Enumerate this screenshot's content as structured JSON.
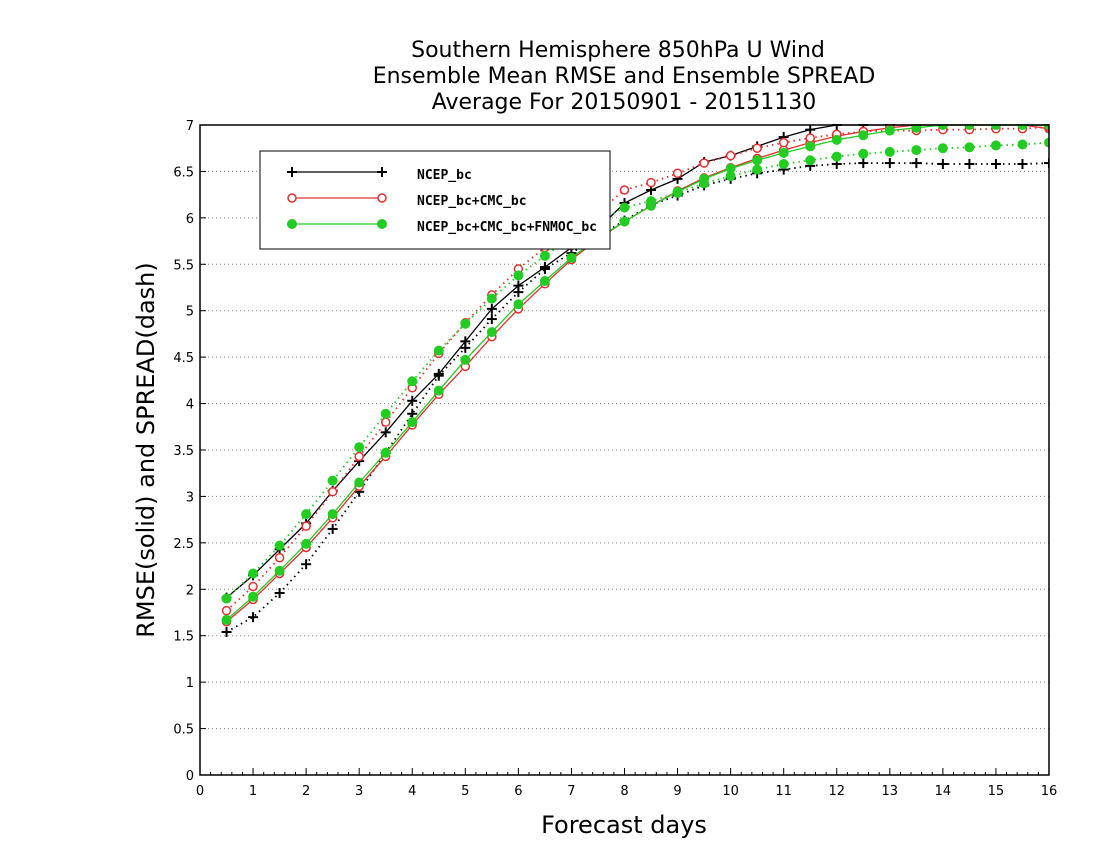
{
  "chart_data": {
    "type": "line",
    "title_lines": [
      "Southern Hemisphere 850hPa U Wind",
      "Ensemble Mean RMSE and Ensemble SPREAD",
      "Average For 20150901 - 20151130"
    ],
    "xlabel": "Forecast days",
    "ylabel": "RMSE(solid) and SPREAD(dash)",
    "xlim": [
      0,
      16
    ],
    "ylim": [
      0,
      7
    ],
    "xticks": [
      "0",
      "1",
      "2",
      "3",
      "4",
      "5",
      "6",
      "7",
      "8",
      "9",
      "10",
      "11",
      "12",
      "13",
      "14",
      "15",
      "16"
    ],
    "yticks": [
      "0",
      "0.5",
      "1",
      "1.5",
      "2",
      "2.5",
      "3",
      "3.5",
      "4",
      "4.5",
      "5",
      "5.5",
      "6",
      "6.5",
      "7"
    ],
    "grid": "horizontal-dotted",
    "legend_placement": "upper-left",
    "x": [
      0.5,
      1,
      1.5,
      2,
      2.5,
      3,
      3.5,
      4,
      4.5,
      5,
      5.5,
      6,
      6.5,
      7,
      7.5,
      8,
      8.5,
      9,
      9.5,
      10,
      10.5,
      11,
      11.5,
      12,
      12.5,
      13,
      13.5,
      14,
      14.5,
      15,
      15.5,
      16
    ],
    "series": [
      {
        "name": "NCEP_bc",
        "color": "#000000",
        "marker": "plus",
        "rmse": [
          1.91,
          2.15,
          2.43,
          2.71,
          3.06,
          3.38,
          3.69,
          4.03,
          4.32,
          4.67,
          5.02,
          5.27,
          5.47,
          5.68,
          5.88,
          6.16,
          6.3,
          6.42,
          6.6,
          6.67,
          6.77,
          6.87,
          6.95,
          7.0,
          7.0,
          7.0,
          7.0,
          7.0,
          7.0,
          7.0,
          7.0,
          7.0
        ],
        "spread": [
          1.54,
          1.7,
          1.96,
          2.27,
          2.65,
          3.05,
          3.47,
          3.89,
          4.3,
          4.6,
          4.91,
          5.2,
          5.45,
          5.62,
          5.8,
          5.97,
          6.14,
          6.24,
          6.35,
          6.42,
          6.48,
          6.52,
          6.56,
          6.58,
          6.59,
          6.59,
          6.59,
          6.58,
          6.58,
          6.58,
          6.58,
          6.59
        ]
      },
      {
        "name": "NCEP_bc+CMC_bc",
        "color": "#e03030",
        "marker": "open-circle",
        "rmse": [
          1.65,
          1.89,
          2.17,
          2.45,
          2.77,
          3.11,
          3.43,
          3.77,
          4.1,
          4.4,
          4.72,
          5.02,
          5.29,
          5.55,
          5.77,
          5.96,
          6.13,
          6.29,
          6.43,
          6.54,
          6.64,
          6.73,
          6.81,
          6.88,
          6.93,
          6.97,
          7.0,
          7.0,
          7.0,
          7.0,
          7.0,
          6.96
        ],
        "spread": [
          1.77,
          2.03,
          2.34,
          2.68,
          3.05,
          3.43,
          3.8,
          4.17,
          4.54,
          4.87,
          5.17,
          5.45,
          5.68,
          5.88,
          6.06,
          6.3,
          6.38,
          6.48,
          6.59,
          6.67,
          6.75,
          6.81,
          6.86,
          6.9,
          6.93,
          6.94,
          6.94,
          6.95,
          6.95,
          6.96,
          6.96,
          6.98
        ]
      },
      {
        "name": "NCEP_bc+CMC_bc+FNMOC_bc",
        "color": "#22cc22",
        "marker": "filled-circle",
        "rmse": [
          1.67,
          1.92,
          2.2,
          2.49,
          2.81,
          3.15,
          3.47,
          3.8,
          4.14,
          4.47,
          4.77,
          5.07,
          5.32,
          5.57,
          5.78,
          5.96,
          6.13,
          6.28,
          6.42,
          6.53,
          6.62,
          6.7,
          6.77,
          6.84,
          6.89,
          6.94,
          6.97,
          7.0,
          7.0,
          7.0,
          7.0,
          7.0
        ],
        "spread": [
          1.9,
          2.17,
          2.47,
          2.81,
          3.17,
          3.53,
          3.89,
          4.24,
          4.57,
          4.86,
          5.13,
          5.38,
          5.59,
          5.79,
          5.96,
          6.11,
          6.18,
          6.27,
          6.37,
          6.45,
          6.52,
          6.58,
          6.62,
          6.66,
          6.69,
          6.71,
          6.73,
          6.75,
          6.76,
          6.78,
          6.79,
          6.81
        ]
      }
    ]
  }
}
